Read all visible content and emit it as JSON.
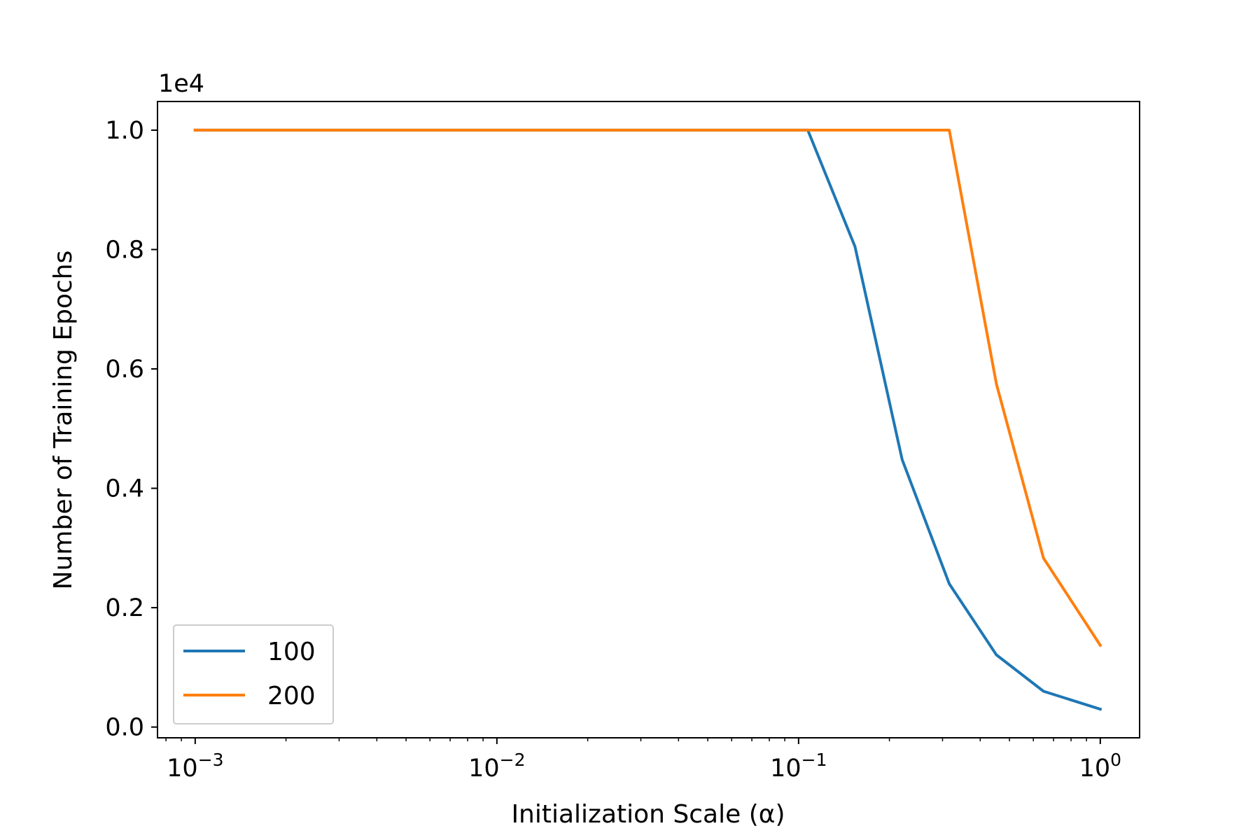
{
  "chart_data": {
    "type": "line",
    "title": "",
    "xlabel": "Initialization Scale (α)",
    "ylabel": "Number of Training Epochs",
    "xscale": "log",
    "xlim": [
      0.00075,
      1.35
    ],
    "ylim": [
      -0.018,
      1.048
    ],
    "y_offset_label": "1e4",
    "x_ticks": [
      {
        "value": 0.001,
        "base": "10",
        "exp": "−3"
      },
      {
        "value": 0.01,
        "base": "10",
        "exp": "−2"
      },
      {
        "value": 0.1,
        "base": "10",
        "exp": "−1"
      },
      {
        "value": 1,
        "base": "10",
        "exp": "0"
      }
    ],
    "y_ticks": [
      {
        "value": 0.0,
        "label": "0.0"
      },
      {
        "value": 0.2,
        "label": "0.2"
      },
      {
        "value": 0.4,
        "label": "0.4"
      },
      {
        "value": 0.6,
        "label": "0.6"
      },
      {
        "value": 0.8,
        "label": "0.8"
      },
      {
        "value": 1.0,
        "label": "1.0"
      }
    ],
    "grid": false,
    "legend_position": "lower-left",
    "x": [
      0.001,
      0.00143,
      0.00205,
      0.00294,
      0.00421,
      0.00603,
      0.00864,
      0.0124,
      0.0178,
      0.0255,
      0.0365,
      0.0523,
      0.0749,
      0.1073,
      0.1538,
      0.2204,
      0.3158,
      0.4524,
      0.6482,
      1.0
    ],
    "series": [
      {
        "name": "100",
        "color": "#1f77b4",
        "values": [
          1.0,
          1.0,
          1.0,
          1.0,
          1.0,
          1.0,
          1.0,
          1.0,
          1.0,
          1.0,
          1.0,
          1.0,
          1.0,
          1.0,
          0.805,
          0.448,
          0.24,
          0.121,
          0.06,
          0.03
        ]
      },
      {
        "name": "200",
        "color": "#ff7f0e",
        "values": [
          1.0,
          1.0,
          1.0,
          1.0,
          1.0,
          1.0,
          1.0,
          1.0,
          1.0,
          1.0,
          1.0,
          1.0,
          1.0,
          1.0,
          1.0,
          1.0,
          1.0,
          0.575,
          0.283,
          0.137
        ]
      }
    ]
  }
}
